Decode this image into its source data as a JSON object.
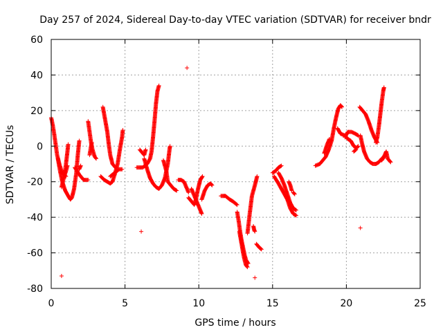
{
  "chart_data": {
    "type": "scatter",
    "marker": "+",
    "title": "Day 257 of 2024, Sidereal Day-to-day VTEC variation (SDTVAR) for receiver bndr",
    "xlabel": "GPS time / hours",
    "ylabel": "SDTVAR / TECUs",
    "xlim": [
      0,
      25
    ],
    "ylim": [
      -80,
      60
    ],
    "xticks": [
      0,
      5,
      10,
      15,
      20,
      25
    ],
    "yticks": [
      -80,
      -60,
      -40,
      -20,
      0,
      20,
      40,
      60
    ],
    "grid": true,
    "colors": {
      "series": "#ff0000",
      "grid": "#a0a0a0",
      "axis": "#000000"
    },
    "series": [
      {
        "name": "SDTVAR",
        "tracks": [
          [
            [
              0.0,
              16
            ],
            [
              0.1,
              12
            ],
            [
              0.2,
              7
            ],
            [
              0.3,
              1
            ],
            [
              0.4,
              -5
            ],
            [
              0.55,
              -10
            ],
            [
              0.7,
              -14
            ],
            [
              0.85,
              -16
            ],
            [
              1.0,
              -17
            ]
          ],
          [
            [
              0.45,
              -7
            ],
            [
              0.6,
              -14
            ],
            [
              0.75,
              -20
            ],
            [
              0.95,
              -25
            ],
            [
              1.15,
              -28
            ],
            [
              1.3,
              -30
            ],
            [
              1.4,
              -29
            ],
            [
              1.55,
              -24
            ],
            [
              1.7,
              -15
            ],
            [
              1.8,
              -5
            ],
            [
              1.9,
              3
            ]
          ],
          [
            [
              0.9,
              -16
            ],
            [
              1.0,
              -10
            ],
            [
              1.1,
              -3
            ],
            [
              1.15,
              1
            ]
          ],
          [
            [
              0.7,
              -23
            ],
            [
              0.85,
              -18
            ],
            [
              1.0,
              -14
            ],
            [
              1.1,
              -11
            ]
          ],
          [
            [
              1.6,
              -12
            ],
            [
              1.9,
              -16
            ],
            [
              2.2,
              -19
            ],
            [
              2.5,
              -19
            ]
          ],
          [
            [
              1.9,
              -13
            ],
            [
              2.0,
              -11
            ]
          ],
          [
            [
              2.5,
              14
            ],
            [
              2.6,
              8
            ],
            [
              2.7,
              2
            ],
            [
              2.8,
              -2
            ],
            [
              2.95,
              -6
            ],
            [
              3.05,
              -7
            ]
          ],
          [
            [
              2.6,
              -5
            ],
            [
              2.7,
              0
            ],
            [
              2.75,
              2
            ]
          ],
          [
            [
              3.5,
              22
            ],
            [
              3.65,
              15
            ],
            [
              3.8,
              8
            ],
            [
              3.9,
              1
            ],
            [
              4.0,
              -5
            ],
            [
              4.15,
              -10
            ],
            [
              4.35,
              -12
            ]
          ],
          [
            [
              3.35,
              -17
            ],
            [
              3.6,
              -19
            ],
            [
              3.8,
              -20
            ],
            [
              4.0,
              -21
            ],
            [
              4.15,
              -20
            ],
            [
              4.3,
              -16
            ],
            [
              4.5,
              -10
            ],
            [
              4.65,
              -2
            ],
            [
              4.8,
              5
            ],
            [
              4.85,
              9
            ]
          ],
          [
            [
              4.0,
              -17
            ],
            [
              4.3,
              -15
            ],
            [
              4.6,
              -13
            ],
            [
              4.8,
              -13
            ]
          ],
          [
            [
              5.8,
              -12
            ],
            [
              6.2,
              -12
            ],
            [
              6.5,
              -10
            ],
            [
              6.7,
              -7
            ],
            [
              6.8,
              -3
            ],
            [
              6.9,
              5
            ],
            [
              7.0,
              14
            ],
            [
              7.1,
              24
            ],
            [
              7.2,
              31
            ],
            [
              7.3,
              34
            ]
          ],
          [
            [
              6.0,
              -2
            ],
            [
              6.1,
              -3
            ],
            [
              6.3,
              -5
            ],
            [
              6.4,
              -2
            ]
          ],
          [
            [
              6.3,
              -7
            ],
            [
              6.5,
              -13
            ],
            [
              6.7,
              -18
            ],
            [
              6.9,
              -21
            ],
            [
              7.1,
              -23
            ],
            [
              7.3,
              -24
            ],
            [
              7.5,
              -22
            ],
            [
              7.7,
              -18
            ],
            [
              7.9,
              -10
            ],
            [
              8.0,
              -3
            ],
            [
              8.05,
              0
            ]
          ],
          [
            [
              7.6,
              -8
            ],
            [
              7.8,
              -14
            ],
            [
              7.9,
              -20
            ],
            [
              8.1,
              -22
            ],
            [
              8.3,
              -24
            ],
            [
              8.5,
              -25
            ]
          ],
          [
            [
              8.6,
              -19
            ],
            [
              8.8,
              -19
            ],
            [
              9.0,
              -20
            ],
            [
              9.15,
              -23
            ],
            [
              9.3,
              -26
            ]
          ],
          [
            [
              9.3,
              -29
            ],
            [
              9.5,
              -31
            ],
            [
              9.7,
              -33
            ],
            [
              9.8,
              -30
            ],
            [
              9.95,
              -24
            ],
            [
              10.1,
              -19
            ],
            [
              10.25,
              -17
            ]
          ],
          [
            [
              9.5,
              -24
            ],
            [
              9.7,
              -28
            ],
            [
              9.85,
              -31
            ],
            [
              10.0,
              -34
            ],
            [
              10.1,
              -36
            ],
            [
              10.2,
              -38
            ]
          ],
          [
            [
              10.2,
              -30
            ],
            [
              10.4,
              -25
            ],
            [
              10.6,
              -22
            ],
            [
              10.8,
              -21
            ],
            [
              10.9,
              -22
            ]
          ],
          [
            [
              11.5,
              -28
            ],
            [
              11.8,
              -28
            ],
            [
              12.1,
              -30
            ],
            [
              12.3,
              -31
            ],
            [
              12.6,
              -33
            ]
          ],
          [
            [
              12.6,
              -37
            ],
            [
              12.7,
              -42
            ],
            [
              12.8,
              -48
            ],
            [
              12.9,
              -53
            ],
            [
              13.0,
              -57
            ],
            [
              13.1,
              -61
            ],
            [
              13.2,
              -64
            ],
            [
              13.35,
              -66
            ]
          ],
          [
            [
              12.75,
              -48
            ],
            [
              12.9,
              -55
            ],
            [
              13.0,
              -60
            ],
            [
              13.1,
              -64
            ],
            [
              13.2,
              -67
            ],
            [
              13.3,
              -68
            ]
          ],
          [
            [
              13.3,
              -49
            ],
            [
              13.45,
              -38
            ],
            [
              13.6,
              -28
            ],
            [
              13.8,
              -22
            ],
            [
              13.95,
              -17
            ]
          ],
          [
            [
              13.7,
              -45
            ],
            [
              13.75,
              -47
            ],
            [
              13.8,
              -48
            ]
          ],
          [
            [
              13.9,
              -55
            ],
            [
              14.1,
              -57
            ],
            [
              14.25,
              -58
            ]
          ],
          [
            [
              15.0,
              -15
            ],
            [
              15.2,
              -14
            ],
            [
              15.4,
              -12
            ],
            [
              15.6,
              -11
            ]
          ],
          [
            [
              15.1,
              -17
            ],
            [
              15.4,
              -21
            ],
            [
              15.6,
              -24
            ],
            [
              15.8,
              -27
            ],
            [
              16.0,
              -30
            ],
            [
              16.2,
              -35
            ],
            [
              16.4,
              -38
            ],
            [
              16.6,
              -39
            ]
          ],
          [
            [
              15.4,
              -15
            ],
            [
              15.6,
              -18
            ],
            [
              15.8,
              -22
            ],
            [
              16.0,
              -27
            ],
            [
              16.2,
              -32
            ],
            [
              16.4,
              -35
            ],
            [
              16.6,
              -36
            ]
          ],
          [
            [
              16.4,
              -26
            ],
            [
              16.5,
              -27
            ]
          ],
          [
            [
              16.1,
              -20
            ],
            [
              16.2,
              -22
            ],
            [
              16.3,
              -25
            ]
          ],
          [
            [
              17.9,
              -11
            ],
            [
              18.2,
              -10
            ],
            [
              18.4,
              -8
            ],
            [
              18.6,
              -6
            ],
            [
              18.8,
              -2
            ],
            [
              19.0,
              3
            ],
            [
              19.15,
              10
            ],
            [
              19.3,
              16
            ],
            [
              19.45,
              21
            ],
            [
              19.6,
              23
            ],
            [
              19.7,
              22
            ]
          ],
          [
            [
              18.5,
              -4
            ],
            [
              18.7,
              1
            ],
            [
              18.85,
              4
            ]
          ],
          [
            [
              19.4,
              10
            ],
            [
              19.6,
              7
            ],
            [
              19.9,
              6
            ],
            [
              20.1,
              4
            ],
            [
              20.3,
              3
            ],
            [
              20.5,
              0
            ],
            [
              20.7,
              -1
            ],
            [
              20.8,
              0
            ]
          ],
          [
            [
              19.9,
              5
            ],
            [
              20.1,
              8
            ],
            [
              20.35,
              8
            ],
            [
              20.6,
              7
            ],
            [
              20.8,
              6
            ]
          ],
          [
            [
              20.5,
              -3
            ],
            [
              20.65,
              -2
            ]
          ],
          [
            [
              20.9,
              22
            ],
            [
              21.1,
              20
            ],
            [
              21.3,
              18
            ],
            [
              21.5,
              14
            ],
            [
              21.7,
              9
            ],
            [
              21.9,
              5
            ],
            [
              22.1,
              2
            ]
          ],
          [
            [
              20.95,
              6
            ],
            [
              21.05,
              2
            ],
            [
              21.2,
              -3
            ],
            [
              21.4,
              -7
            ],
            [
              21.6,
              -9
            ],
            [
              21.8,
              -10
            ],
            [
              22.0,
              -10
            ],
            [
              22.2,
              -9
            ],
            [
              22.4,
              -7
            ],
            [
              22.6,
              -6
            ]
          ],
          [
            [
              22.0,
              2
            ],
            [
              22.1,
              5
            ],
            [
              22.2,
              11
            ],
            [
              22.3,
              18
            ],
            [
              22.4,
              25
            ],
            [
              22.5,
              31
            ],
            [
              22.55,
              33
            ]
          ],
          [
            [
              22.4,
              -8
            ],
            [
              22.6,
              -5
            ],
            [
              22.7,
              -3
            ],
            [
              22.8,
              -7
            ],
            [
              23.0,
              -9
            ]
          ]
        ],
        "outliers": [
          [
            0.7,
            -73
          ],
          [
            6.1,
            -48
          ],
          [
            9.2,
            44
          ],
          [
            13.8,
            -74
          ],
          [
            20.95,
            -46
          ]
        ]
      }
    ]
  }
}
